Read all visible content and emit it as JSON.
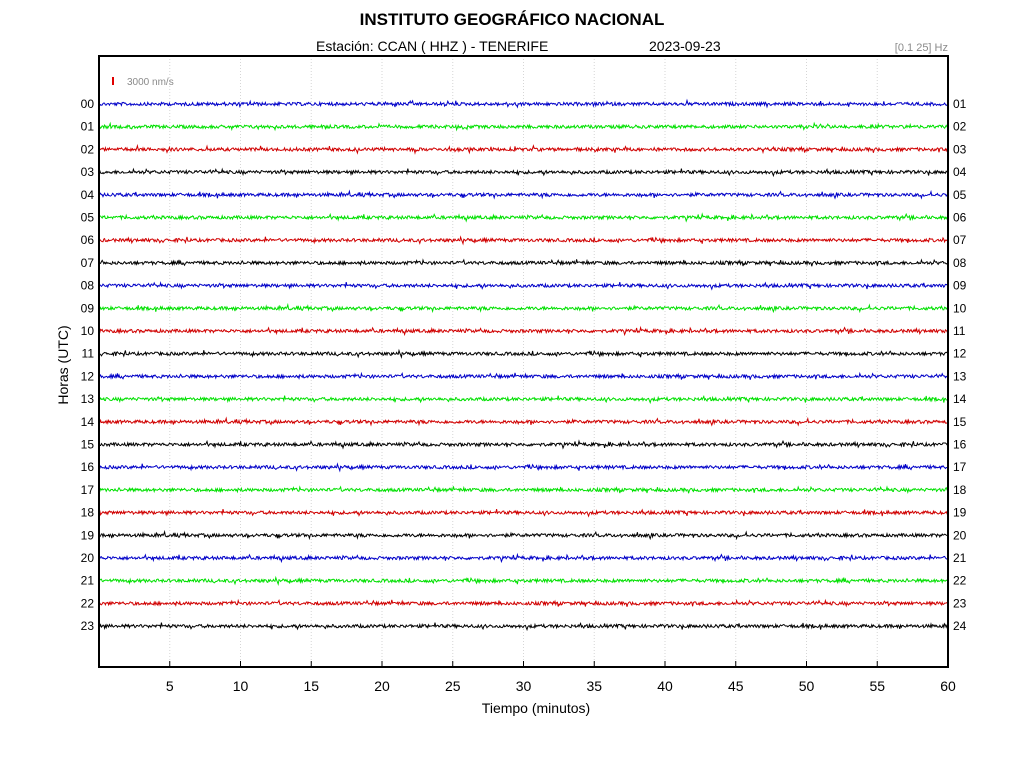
{
  "header": {
    "title": "INSTITUTO GEOGRÁFICO NACIONAL",
    "station": "Estación:  CCAN ( HHZ ) - TENERIFE",
    "date": "2023-09-23",
    "band": "[0.1 25] Hz"
  },
  "chart_data": {
    "type": "line",
    "xlabel": "Tiempo (minutos)",
    "ylabel": "Horas (UTC)",
    "xlim": [
      0,
      60
    ],
    "x_ticks": [
      5,
      10,
      15,
      20,
      25,
      30,
      35,
      40,
      45,
      50,
      55,
      60
    ],
    "y_ticks_left": [
      "00",
      "01",
      "02",
      "03",
      "04",
      "05",
      "06",
      "07",
      "08",
      "09",
      "10",
      "11",
      "12",
      "13",
      "14",
      "15",
      "16",
      "17",
      "18",
      "19",
      "20",
      "21",
      "22",
      "23"
    ],
    "y_ticks_right": [
      "01",
      "02",
      "03",
      "04",
      "05",
      "06",
      "07",
      "08",
      "09",
      "10",
      "11",
      "12",
      "13",
      "14",
      "15",
      "16",
      "17",
      "18",
      "19",
      "20",
      "21",
      "22",
      "23",
      "24"
    ],
    "trace_colors": [
      "#0000c8",
      "#00e000",
      "#d00000",
      "#000000"
    ],
    "scale_label": "3000 nm/s",
    "scale_color": "#e00000",
    "grid": true
  }
}
